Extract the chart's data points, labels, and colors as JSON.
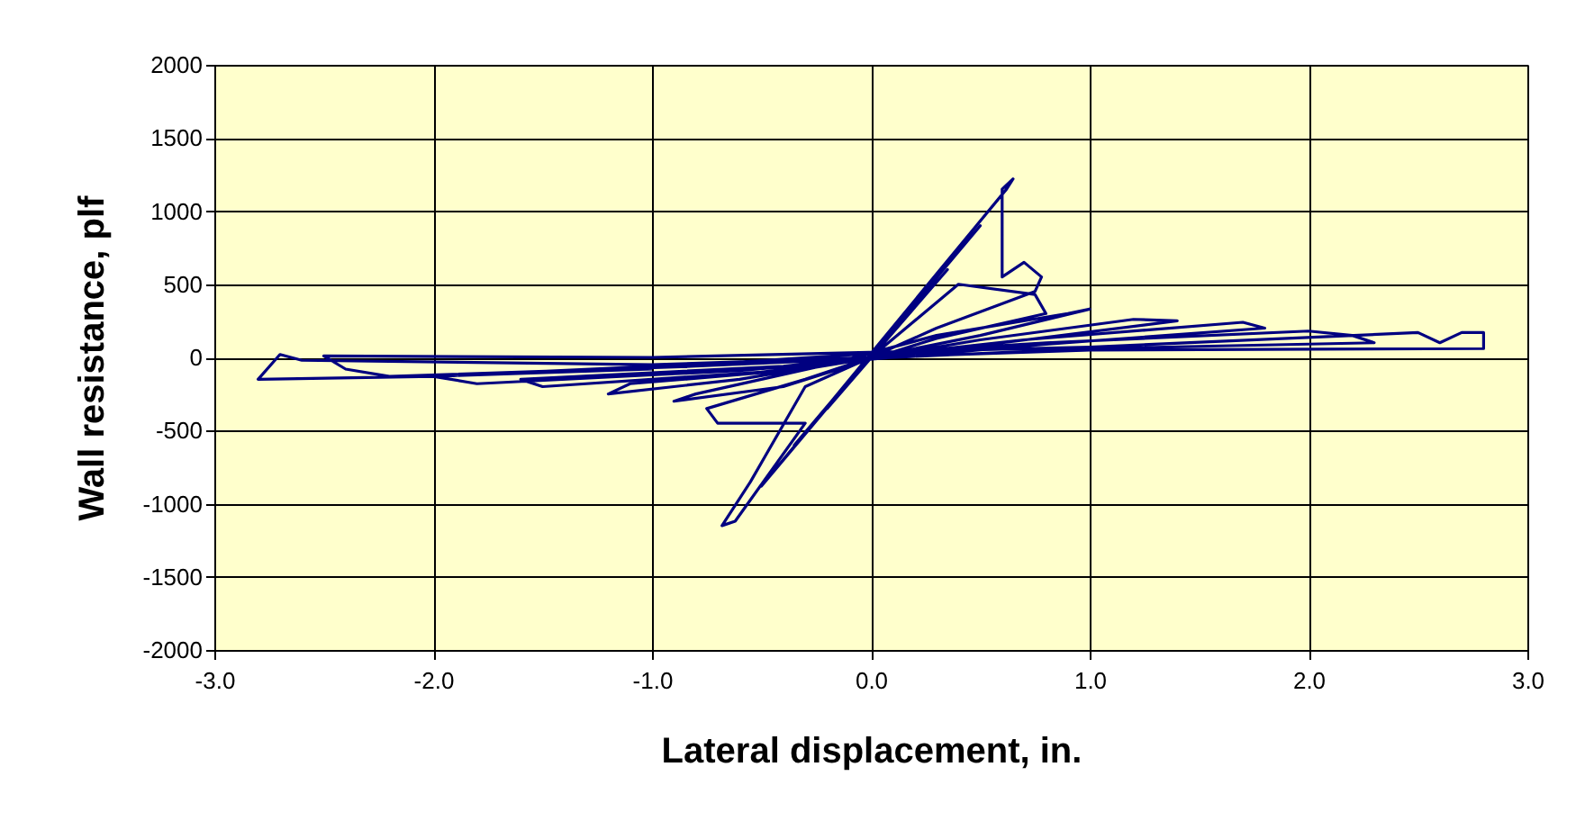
{
  "chart_data": {
    "type": "line",
    "xlabel": "Lateral displacement, in.",
    "ylabel": "Wall resistance, plf",
    "xlim": [
      -3,
      3
    ],
    "ylim": [
      -2000,
      2000
    ],
    "xticks": [
      {
        "value": -3,
        "label": "-3.0"
      },
      {
        "value": -2,
        "label": "-2.0"
      },
      {
        "value": -1,
        "label": "-1.0"
      },
      {
        "value": 0,
        "label": "0.0"
      },
      {
        "value": 1,
        "label": "1.0"
      },
      {
        "value": 2,
        "label": "2.0"
      },
      {
        "value": 3,
        "label": "3.0"
      }
    ],
    "yticks": [
      -2000,
      -1500,
      -1000,
      -500,
      0,
      500,
      1000,
      1500,
      2000
    ],
    "grid": true,
    "legend": false,
    "marker": "none",
    "line_style": "solid",
    "series": [
      {
        "color": "#000080",
        "x": [
          0,
          0.2,
          -0.2,
          0.35,
          -0.35,
          0.5,
          -0.5,
          0.62,
          0.65,
          0.6,
          0.6,
          0.7,
          0.78,
          0.75,
          0.3,
          0,
          -0.3,
          -0.55,
          -0.68,
          -0.62,
          -0.3,
          -0.7,
          -0.75,
          -0.3,
          0,
          0.4,
          0.75,
          0.8,
          0.3,
          -0.4,
          -0.9,
          -0.8,
          -0.2,
          0.3,
          0.9,
          1.0,
          0.5,
          0,
          -0.6,
          -1.2,
          -1.1,
          -0.3,
          0.5,
          1.2,
          1.4,
          0.6,
          -0.5,
          -1.5,
          -1.6,
          -0.4,
          0.7,
          1.7,
          1.8,
          0.8,
          -0.6,
          -1.8,
          -2.0,
          -0.7,
          0.8,
          2.0,
          2.2,
          2.3,
          1.0,
          -0.8,
          -2.2,
          -2.4,
          -2.5,
          -1,
          1,
          2.5,
          2.6,
          2.7,
          2.8,
          2.8,
          1.0,
          -1,
          -2.6,
          -2.7,
          -2.8,
          -2.0,
          -1
        ],
        "values": [
          0,
          350,
          -350,
          600,
          -600,
          900,
          -880,
          1150,
          1220,
          1150,
          550,
          650,
          550,
          450,
          200,
          0,
          -200,
          -850,
          -1150,
          -1120,
          -450,
          -450,
          -350,
          -150,
          0,
          500,
          430,
          300,
          130,
          -200,
          -300,
          -250,
          -50,
          150,
          300,
          330,
          150,
          0,
          -150,
          -250,
          -180,
          -80,
          120,
          260,
          250,
          100,
          -100,
          -200,
          -150,
          -60,
          120,
          240,
          200,
          90,
          -90,
          -180,
          -130,
          -40,
          100,
          180,
          150,
          100,
          60,
          -60,
          -130,
          -80,
          10,
          0,
          70,
          170,
          100,
          170,
          170,
          60,
          50,
          -50,
          -20,
          20,
          -150,
          -130,
          -80
        ]
      }
    ]
  }
}
